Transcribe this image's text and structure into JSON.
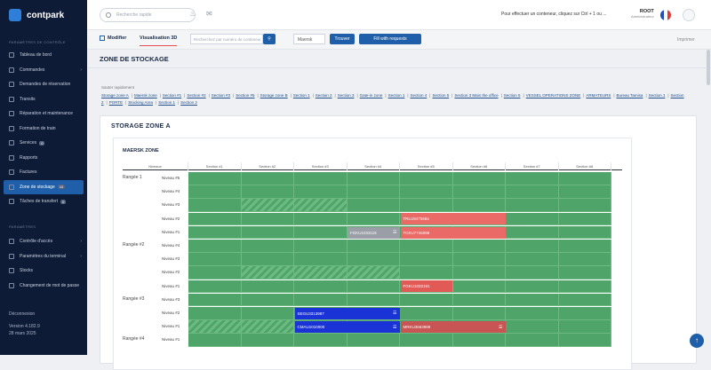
{
  "brand": {
    "name": "contpark"
  },
  "sidebar": {
    "section1": "Paramètres de contrôle",
    "items": [
      {
        "label": "Tableau de bord",
        "icon": "dashboard-icon"
      },
      {
        "label": "Commandes",
        "icon": "orders-icon",
        "chev": true
      },
      {
        "label": "Demandes de réservation",
        "icon": "booking-icon"
      },
      {
        "label": "Transits",
        "icon": "transit-icon"
      },
      {
        "label": "Réparation et maintenance",
        "icon": "wrench-icon"
      },
      {
        "label": "Formation de train",
        "icon": "train-icon"
      },
      {
        "label": "Services",
        "icon": "services-icon",
        "badge": "0"
      },
      {
        "label": "Rapports",
        "icon": "reports-icon"
      },
      {
        "label": "Factures",
        "icon": "invoice-icon"
      },
      {
        "label": "Zone de stockage",
        "icon": "storage-icon",
        "active": true,
        "badge": "10"
      },
      {
        "label": "Tâches de transfert",
        "icon": "transfer-icon",
        "badge": "0"
      }
    ],
    "section2": "Paramètres",
    "items2": [
      {
        "label": "Contrôle d'accès",
        "icon": "access-icon",
        "chev": true
      },
      {
        "label": "Paramètres du terminal",
        "icon": "terminal-icon",
        "chev": true
      },
      {
        "label": "Stocks",
        "icon": "stock-icon"
      },
      {
        "label": "Changement de mot de passe",
        "icon": "password-icon"
      }
    ],
    "logout": "Déconnexion",
    "version": "Version 4.182.9",
    "date": "28 mars 2025"
  },
  "topbar": {
    "search_placeholder": "Recherche rapide",
    "ticker": "Pour effectuer un conteneur, cliquez sur Ctrl + 1 ou ...",
    "user_name": "ROOT",
    "user_role": "Administrateur"
  },
  "subbar": {
    "tab_modify": "Modifier",
    "tab_view": "Visualisation 3D",
    "input_placeholder": "Recherchez par numéro de conteneur",
    "select_value": "Maersk",
    "find_btn": "Trouver",
    "fill_btn": "Fill with requests",
    "logout": "Imprimer"
  },
  "page": {
    "title": "ZONE DE STOCKAGE"
  },
  "quick": {
    "label": "Sauter rapidement",
    "links": [
      "Storage zone A",
      "Maersk zone",
      "Section #1",
      "Section #2",
      "Section #3",
      "Section #5",
      "Storage zone B",
      "Section 1",
      "Section 2",
      "Section 3",
      "Gate-in zone",
      "Section 1",
      "Section 4",
      "Section 5",
      "Section 3 Main the office",
      "Section 5",
      "VESSEL OPERATIONS ZONE",
      "ARMATEURS",
      "Bureau Tamisa",
      "Section 1",
      "Section 2",
      "PORTE",
      "Stocking Area",
      "Section 1",
      "Section 2"
    ]
  },
  "card": {
    "title": "STORAGE ZONE A"
  },
  "zone": {
    "title": "MAERSK ZONE",
    "header_first": "Niveaux",
    "sections": [
      "Section #1",
      "Section #2",
      "Section #3",
      "Section #4",
      "Section #5",
      "Section #6",
      "Section #7",
      "Section #8"
    ],
    "bays": [
      {
        "name": "Rangée 1",
        "levels": [
          "Niveau #5",
          "Niveau #4",
          "Niveau #3",
          "Niveau #2",
          "Niveau #1"
        ]
      },
      {
        "name": "Rangée #2",
        "levels": [
          "Niveau #4",
          "Niveau #3",
          "Niveau #2",
          "Niveau #1"
        ]
      },
      {
        "name": "Rangée #3",
        "levels": [
          "Niveau #3",
          "Niveau #2",
          "Niveau #1"
        ]
      },
      {
        "name": "Rangée #4",
        "levels": [
          "Niveau #1"
        ]
      }
    ],
    "containers": [
      {
        "id": "TRLU9475684",
        "row": 3,
        "col": 4,
        "span": 2,
        "color": "#e96a66"
      },
      {
        "id": "FGKU1033118",
        "row": 4,
        "col": 3,
        "span": 1,
        "color": "#9a9ea6",
        "icon": true
      },
      {
        "id": "TCKU7746098",
        "row": 4,
        "col": 4,
        "span": 2,
        "color": "#e96a66"
      },
      {
        "id": "FGKU1032191",
        "row": 8,
        "col": 4,
        "span": 1,
        "color": "#e15a56"
      },
      {
        "id": "SEGU3313987",
        "row": 10,
        "col": 2,
        "span": 2,
        "color": "#1a33d6",
        "icon": true
      },
      {
        "id": "CMAU1010000",
        "row": 11,
        "col": 2,
        "span": 2,
        "color": "#1a33d6",
        "icon": true
      },
      {
        "id": "MRKU3663988",
        "row": 11,
        "col": 4,
        "span": 2,
        "color": "#c85454",
        "icon": true
      }
    ]
  },
  "colors": {
    "sidebar": "#0d1b36",
    "accent": "#1f5ea8",
    "free_slot": "#4fa569"
  }
}
